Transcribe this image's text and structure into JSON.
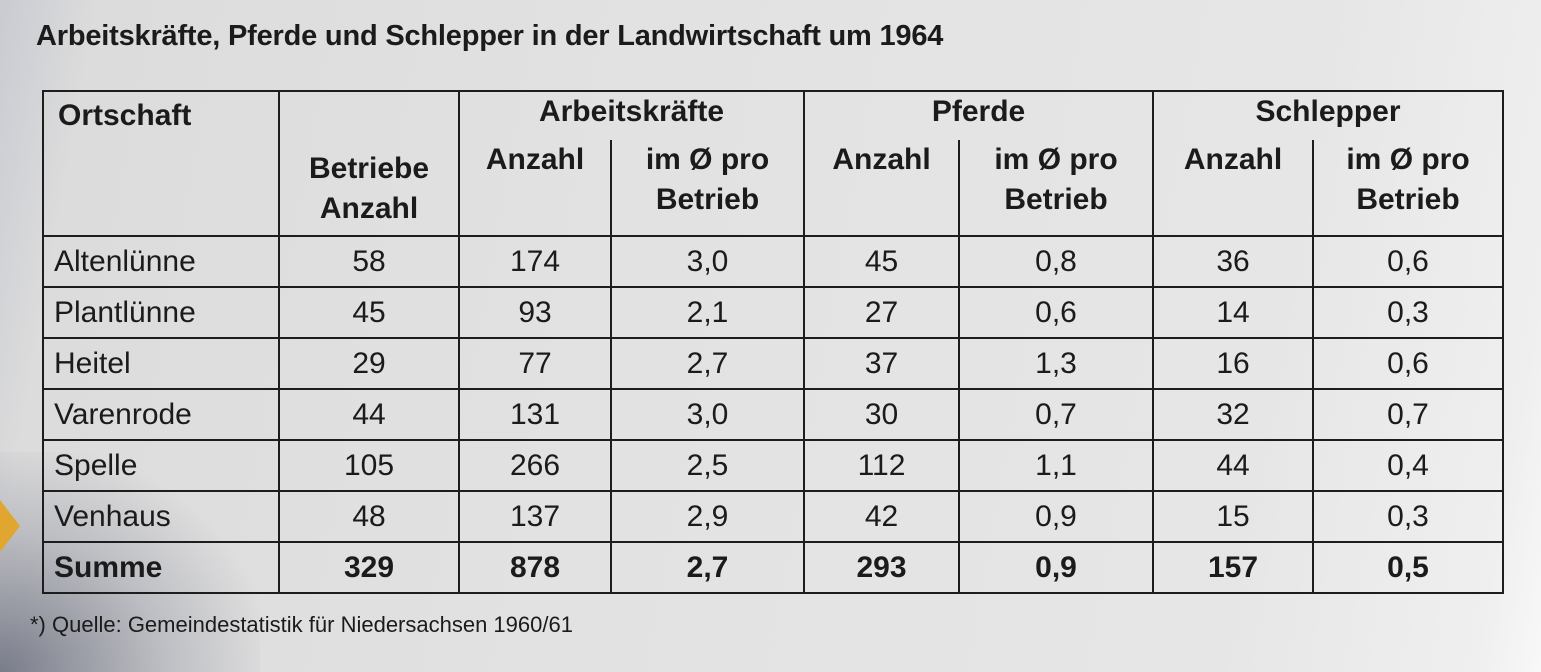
{
  "title": "Arbeitskräfte, Pferde und Schlepper in der Landwirtschaft um 1964",
  "headers": {
    "ortschaft": "Ortschaft",
    "betriebe": "Betriebe Anzahl",
    "arbeitskraefte": "Arbeitskräfte",
    "pferde": "Pferde",
    "schlepper": "Schlepper",
    "anzahl": "Anzahl",
    "im_schnitt": "im Ø pro Betrieb"
  },
  "rows": [
    [
      "Altenlünne",
      "58",
      "174",
      "3,0",
      "45",
      "0,8",
      "36",
      "0,6"
    ],
    [
      "Plantlünne",
      "45",
      "93",
      "2,1",
      "27",
      "0,6",
      "14",
      "0,3"
    ],
    [
      "Heitel",
      "29",
      "77",
      "2,7",
      "37",
      "1,3",
      "16",
      "0,6"
    ],
    [
      "Varenrode",
      "44",
      "131",
      "3,0",
      "30",
      "0,7",
      "32",
      "0,7"
    ],
    [
      "Spelle",
      "105",
      "266",
      "2,5",
      "112",
      "1,1",
      "44",
      "0,4"
    ],
    [
      "Venhaus",
      "48",
      "137",
      "2,9",
      "42",
      "0,9",
      "15",
      "0,3"
    ]
  ],
  "sum_row": [
    "Summe",
    "329",
    "878",
    "2,7",
    "293",
    "0,9",
    "157",
    "0,5"
  ],
  "footnote": "*) Quelle: Gemeindestatistik für Niedersachsen 1960/61"
}
